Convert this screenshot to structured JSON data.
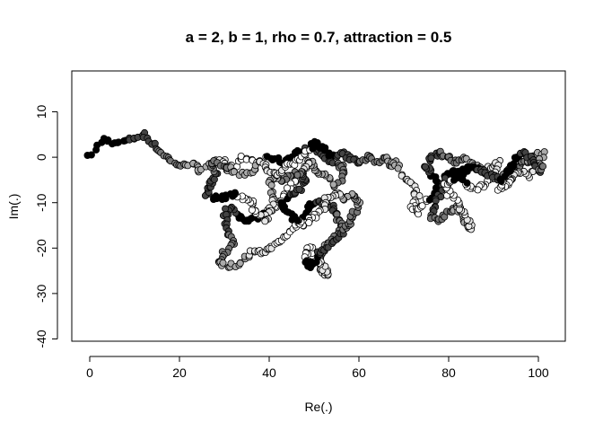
{
  "chart_data": {
    "type": "scatter",
    "title": "a = 2, b = 1, rho = 0.7, attraction = 0.5",
    "xlabel": "Re(.)",
    "ylabel": "Im(.)",
    "xlim": [
      -4,
      106
    ],
    "ylim": [
      -40.5,
      19
    ],
    "xticks": [
      "0",
      "20",
      "40",
      "60",
      "80",
      "100"
    ],
    "yticks": [
      "-40",
      "-30",
      "-20",
      "-10",
      "0",
      "10"
    ],
    "grid": false,
    "legend": "none",
    "point_colors": [
      "#000000",
      "#444444",
      "#777777",
      "#aaaaaa",
      "#e6e6e6",
      "#ffffff"
    ],
    "outline_color": "#000000",
    "path_waypoints": [
      [
        0,
        0
      ],
      [
        3,
        4
      ],
      [
        6,
        3
      ],
      [
        9,
        4
      ],
      [
        12,
        5
      ],
      [
        14,
        3
      ],
      [
        16,
        1
      ],
      [
        18,
        -1
      ],
      [
        21,
        -2
      ],
      [
        23,
        -1
      ],
      [
        24,
        -3
      ],
      [
        27,
        -1
      ],
      [
        30,
        -1
      ],
      [
        31,
        -3
      ],
      [
        32,
        -2
      ],
      [
        34,
        0
      ],
      [
        37,
        -1
      ],
      [
        40,
        0
      ],
      [
        43,
        -1
      ],
      [
        46,
        1
      ],
      [
        49,
        2
      ],
      [
        52,
        1
      ],
      [
        54,
        -1
      ],
      [
        56,
        -2
      ],
      [
        57,
        -3
      ],
      [
        55,
        -6
      ],
      [
        52,
        -4
      ],
      [
        50,
        -3
      ],
      [
        49,
        -1
      ],
      [
        48,
        -2
      ],
      [
        47,
        -4
      ],
      [
        45,
        -6
      ],
      [
        43,
        -9
      ],
      [
        41,
        -11
      ],
      [
        38,
        -13
      ],
      [
        35,
        -14
      ],
      [
        33,
        -13
      ],
      [
        31,
        -11
      ],
      [
        30,
        -13
      ],
      [
        31,
        -16
      ],
      [
        32,
        -19
      ],
      [
        30,
        -21
      ],
      [
        29,
        -23
      ],
      [
        31,
        -24
      ],
      [
        34,
        -23
      ],
      [
        36,
        -21
      ],
      [
        38,
        -21
      ],
      [
        40,
        -20
      ],
      [
        42,
        -19
      ],
      [
        44,
        -17
      ],
      [
        46,
        -15
      ],
      [
        48,
        -13
      ],
      [
        49,
        -11
      ],
      [
        50,
        -10
      ],
      [
        52,
        -10
      ],
      [
        54,
        -11
      ],
      [
        55,
        -13
      ],
      [
        56,
        -15
      ],
      [
        55,
        -17
      ],
      [
        53,
        -19
      ],
      [
        52,
        -21
      ],
      [
        51,
        -23
      ],
      [
        52,
        -25
      ],
      [
        53,
        -26
      ],
      [
        52,
        -24
      ],
      [
        50,
        -22
      ],
      [
        49,
        -20
      ],
      [
        48,
        -22
      ],
      [
        49,
        -24
      ],
      [
        50,
        -23
      ],
      [
        51,
        -21
      ],
      [
        53,
        -20
      ],
      [
        55,
        -18
      ],
      [
        57,
        -16
      ],
      [
        58,
        -14
      ],
      [
        59,
        -12
      ],
      [
        60,
        -10
      ],
      [
        59,
        -8
      ],
      [
        57,
        -9
      ],
      [
        55,
        -8
      ],
      [
        53,
        -9
      ],
      [
        52,
        -11
      ],
      [
        50,
        -13
      ],
      [
        48,
        -15
      ],
      [
        46,
        -14
      ],
      [
        44,
        -12
      ],
      [
        43,
        -10
      ],
      [
        45,
        -8
      ],
      [
        47,
        -7
      ],
      [
        48,
        -5
      ],
      [
        47,
        -3
      ],
      [
        45,
        -4
      ],
      [
        43,
        -5
      ],
      [
        41,
        -4
      ],
      [
        40,
        -6
      ],
      [
        41,
        -9
      ],
      [
        40,
        -12
      ],
      [
        39,
        -14
      ],
      [
        37,
        -12
      ],
      [
        36,
        -10
      ],
      [
        34,
        -9
      ],
      [
        32,
        -8
      ],
      [
        30,
        -9
      ],
      [
        28,
        -9
      ],
      [
        26,
        -8
      ],
      [
        27,
        -6
      ],
      [
        28,
        -4
      ],
      [
        27,
        -2
      ],
      [
        28,
        -1
      ],
      [
        31,
        -2
      ],
      [
        33,
        -4
      ],
      [
        36,
        -3
      ],
      [
        38,
        -1
      ],
      [
        40,
        -3
      ],
      [
        42,
        -4
      ],
      [
        44,
        -2
      ],
      [
        46,
        -1
      ],
      [
        48,
        1
      ],
      [
        50,
        3
      ],
      [
        52,
        2
      ],
      [
        54,
        0
      ],
      [
        56,
        1
      ],
      [
        58,
        0
      ],
      [
        60,
        -1
      ],
      [
        62,
        0
      ],
      [
        64,
        -1
      ],
      [
        66,
        0
      ],
      [
        67,
        -2
      ],
      [
        68,
        -1
      ],
      [
        70,
        -4
      ],
      [
        72,
        -6
      ],
      [
        73,
        -9
      ],
      [
        72,
        -11
      ],
      [
        73,
        -12
      ],
      [
        75,
        -10
      ],
      [
        77,
        -8
      ],
      [
        78,
        -6
      ],
      [
        76,
        -4
      ],
      [
        75,
        -2
      ],
      [
        76,
        0
      ],
      [
        78,
        1
      ],
      [
        80,
        0
      ],
      [
        82,
        -1
      ],
      [
        84,
        0
      ],
      [
        86,
        -2
      ],
      [
        88,
        -3
      ],
      [
        90,
        -2
      ],
      [
        91,
        -1
      ],
      [
        90,
        -4
      ],
      [
        88,
        -6
      ],
      [
        86,
        -7
      ],
      [
        84,
        -6
      ],
      [
        83,
        -4
      ],
      [
        81,
        -3
      ],
      [
        79,
        -5
      ],
      [
        78,
        -8
      ],
      [
        77,
        -11
      ],
      [
        76,
        -13
      ],
      [
        78,
        -14
      ],
      [
        80,
        -12
      ],
      [
        82,
        -11
      ],
      [
        83,
        -13
      ],
      [
        84,
        -15
      ],
      [
        85,
        -16
      ],
      [
        84,
        -13
      ],
      [
        82,
        -10
      ],
      [
        80,
        -8
      ],
      [
        79,
        -6
      ],
      [
        81,
        -5
      ],
      [
        83,
        -3
      ],
      [
        85,
        -2
      ],
      [
        87,
        -3
      ],
      [
        89,
        -4
      ],
      [
        91,
        -5
      ],
      [
        93,
        -3
      ],
      [
        95,
        -2
      ],
      [
        97,
        -1
      ],
      [
        99,
        0
      ],
      [
        101,
        1
      ],
      [
        100,
        -2
      ],
      [
        98,
        -4
      ],
      [
        96,
        -3
      ],
      [
        94,
        -5
      ],
      [
        93,
        -6
      ],
      [
        91,
        -7
      ],
      [
        92,
        -5
      ],
      [
        94,
        -2
      ],
      [
        95,
        0
      ],
      [
        97,
        1
      ],
      [
        99,
        -1
      ],
      [
        100,
        -3
      ],
      [
        101,
        -2
      ]
    ]
  }
}
